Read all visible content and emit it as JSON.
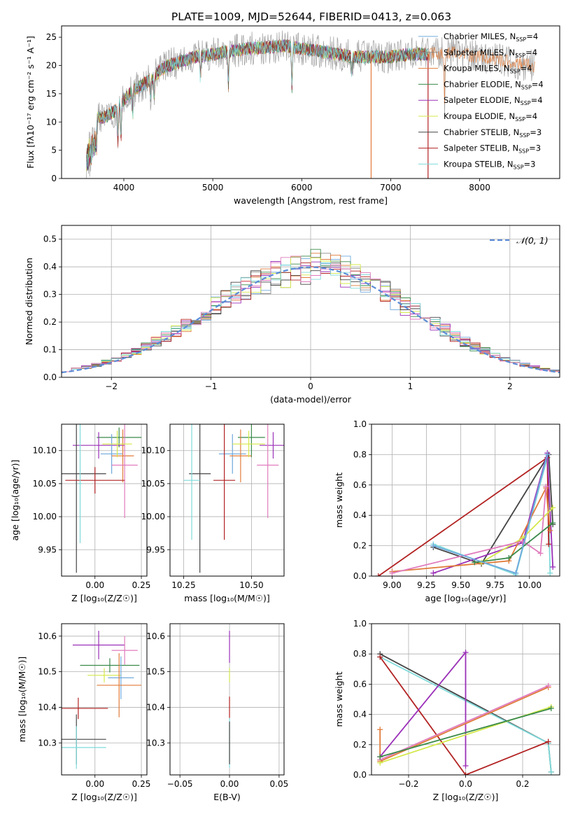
{
  "figure_title": "PLATE=1009, MJD=52644, FIBERID=0413, z=0.063",
  "colors": {
    "chabrier_miles": "#6fa8dc",
    "salpeter_miles": "#8e8e8e",
    "kroupa_miles": "#e07b39",
    "chabrier_elodie": "#3a8a4a",
    "salpeter_elodie": "#9b30b8",
    "kroupa_elodie": "#d4e84a",
    "chabrier_stelib": "#444444",
    "salpeter_stelib": "#b22222",
    "kroupa_stelib": "#7fdada",
    "pink": "#e07bbd",
    "normal_curve": "#5b8bd6"
  },
  "legend_spectrum": [
    {
      "pre": "Chabrier MILES, N",
      "sub": "SSP",
      "post": "=4",
      "color": "#6fa8dc"
    },
    {
      "pre": "Salpeter MILES, N",
      "sub": "SSP",
      "post": "=4",
      "color": "#8e8e8e"
    },
    {
      "pre": "Kroupa MILES, N",
      "sub": "SSP",
      "post": "=4",
      "color": "#e07b39"
    },
    {
      "pre": "Chabrier ELODIE, N",
      "sub": "SSP",
      "post": "=4",
      "color": "#3a8a4a"
    },
    {
      "pre": "Salpeter ELODIE, N",
      "sub": "SSP",
      "post": "=4",
      "color": "#9b30b8"
    },
    {
      "pre": "Kroupa ELODIE, N",
      "sub": "SSP",
      "post": "=4",
      "color": "#d4e84a"
    },
    {
      "pre": "Chabrier STELIB, N",
      "sub": "SSP",
      "post": "=3",
      "color": "#444444"
    },
    {
      "pre": "Salpeter STELIB, N",
      "sub": "SSP",
      "post": "=3",
      "color": "#b22222"
    },
    {
      "pre": "Kroupa STELIB, N",
      "sub": "SSP",
      "post": "=3",
      "color": "#7fdada"
    }
  ],
  "chart_data": [
    {
      "id": "spectrum",
      "type": "line",
      "xlabel": "wavelength [Angstrom, rest frame]",
      "ylabel": "Flux [fλ10⁻¹⁷ erg cm⁻² s⁻¹ A⁻¹]",
      "xlim": [
        3300,
        8900
      ],
      "ylim": [
        0,
        27
      ],
      "xticks": [
        4000,
        5000,
        6000,
        7000,
        8000
      ],
      "yticks": [
        0,
        5,
        10,
        15,
        20,
        25
      ],
      "continuum": {
        "x": [
          3600,
          3700,
          3800,
          3900,
          4000,
          4100,
          4200,
          4300,
          4400,
          4500,
          4600,
          4800,
          5000,
          5200,
          5400,
          5600,
          5800,
          6000,
          6200,
          6400,
          6600,
          6800,
          7000,
          7200,
          7400,
          7600,
          7800,
          8000,
          8200,
          8400,
          8600
        ],
        "y": [
          8,
          10.5,
          11,
          12,
          14,
          15.5,
          16.5,
          17.5,
          19,
          20,
          20.5,
          21.5,
          22,
          22.5,
          23,
          23.2,
          23.5,
          23,
          22.5,
          22,
          21.5,
          21.5,
          21.5,
          22,
          22,
          22.3,
          22,
          21.5,
          21,
          20.5,
          20
        ]
      },
      "series_names": [
        "Chabrier MILES",
        "Salpeter MILES",
        "Kroupa MILES",
        "Chabrier ELODIE",
        "Salpeter ELODIE",
        "Kroupa ELODIE",
        "Chabrier STELIB",
        "Salpeter STELIB",
        "Kroupa STELIB"
      ]
    },
    {
      "id": "residuals",
      "type": "histogram",
      "xlabel": "(data-model)/error",
      "ylabel": "Normed distribution",
      "xlim": [
        -2.5,
        2.5
      ],
      "ylim": [
        0,
        0.55
      ],
      "xticks": [
        -2,
        -1,
        0,
        1,
        2
      ],
      "yticks": [
        0.0,
        0.1,
        0.2,
        0.3,
        0.4,
        0.5
      ],
      "legend": "𝒩(0, 1)",
      "bin_width": 0.1
    },
    {
      "id": "age_vs_Z",
      "type": "errorbar",
      "xlabel": "Z [log₁₀(Z/Z☉)]",
      "ylabel": "age  [log₁₀(age/yr)]",
      "xlim": [
        -0.18,
        0.28
      ],
      "ylim": [
        9.91,
        10.14
      ],
      "xticks": [
        0.0,
        0.25
      ],
      "yticks": [
        9.95,
        10.0,
        10.05,
        10.1
      ],
      "points": [
        {
          "x": 0.13,
          "y": 10.12,
          "xerr": 0.12,
          "yerr": 0.015,
          "color": "#3a8a4a"
        },
        {
          "x": 0.02,
          "y": 10.108,
          "xerr": 0.14,
          "yerr": 0.02,
          "color": "#9b30b8"
        },
        {
          "x": 0.09,
          "y": 10.095,
          "xerr": 0.06,
          "yerr": 0.03,
          "color": "#6fa8dc"
        },
        {
          "x": 0.15,
          "y": 10.092,
          "xerr": 0.06,
          "yerr": 0.04,
          "color": "#e07b39"
        },
        {
          "x": 0.16,
          "y": 10.078,
          "xerr": 0.07,
          "yerr": 0.08,
          "color": "#e07bbd"
        },
        {
          "x": -0.1,
          "y": 10.065,
          "xerr": 0.16,
          "yerr": 0.15,
          "color": "#444444"
        },
        {
          "x": 0.0,
          "y": 10.055,
          "xerr": 0.16,
          "yerr": 0.02,
          "color": "#b22222"
        },
        {
          "x": -0.08,
          "y": 10.05,
          "xerr": 0.01,
          "yerr": 0.09,
          "color": "#7fdada"
        },
        {
          "x": 0.12,
          "y": 10.11,
          "xerr": 0.08,
          "yerr": 0.02,
          "color": "#d4e84a"
        }
      ]
    },
    {
      "id": "age_vs_mass",
      "type": "errorbar",
      "xlabel": "mass [log₁₀(M/M☉)]",
      "ylabel": "",
      "xlim": [
        10.2,
        10.62
      ],
      "ylim": [
        9.91,
        10.14
      ],
      "xticks": [
        10.25,
        10.5
      ],
      "yticks": [
        9.95,
        10.0,
        10.05,
        10.1
      ],
      "points": [
        {
          "x": 10.5,
          "y": 10.12,
          "xerr": 0.05,
          "yerr": 0.03,
          "color": "#3a8a4a"
        },
        {
          "x": 10.58,
          "y": 10.108,
          "xerr": 0.05,
          "yerr": 0.02,
          "color": "#9b30b8"
        },
        {
          "x": 10.43,
          "y": 10.095,
          "xerr": 0.05,
          "yerr": 0.03,
          "color": "#6fa8dc"
        },
        {
          "x": 10.46,
          "y": 10.092,
          "xerr": 0.04,
          "yerr": 0.04,
          "color": "#e07b39"
        },
        {
          "x": 10.56,
          "y": 10.078,
          "xerr": 0.04,
          "yerr": 0.08,
          "color": "#e07bbd"
        },
        {
          "x": 10.31,
          "y": 10.065,
          "xerr": 0.04,
          "yerr": 0.15,
          "color": "#444444"
        },
        {
          "x": 10.4,
          "y": 10.055,
          "xerr": 0.04,
          "yerr": 0.09,
          "color": "#b22222"
        },
        {
          "x": 10.28,
          "y": 10.055,
          "xerr": 0.03,
          "yerr": 0.09,
          "color": "#7fdada"
        },
        {
          "x": 10.49,
          "y": 10.11,
          "xerr": 0.06,
          "yerr": 0.02,
          "color": "#d4e84a"
        }
      ]
    },
    {
      "id": "weight_vs_age",
      "type": "line",
      "xlabel": "age  [log₁₀(age/yr)]",
      "ylabel": "mass weight",
      "xlim": [
        8.85,
        10.22
      ],
      "ylim": [
        0,
        1.0
      ],
      "xticks": [
        9.0,
        9.25,
        9.5,
        9.75,
        10.0
      ],
      "yticks": [
        0.0,
        0.2,
        0.4,
        0.6,
        0.8,
        1.0
      ],
      "series": [
        {
          "color": "#7fdada",
          "x": [
            9.3,
            9.9,
            10.13,
            10.15
          ],
          "y": [
            0.21,
            0.01,
            0.78,
            0.02
          ]
        },
        {
          "color": "#444444",
          "x": [
            9.3,
            9.65,
            10.14,
            10.17
          ],
          "y": [
            0.19,
            0.08,
            0.8,
            0.34
          ]
        },
        {
          "color": "#b22222",
          "x": [
            8.9,
            10.13,
            10.14
          ],
          "y": [
            0.0,
            0.78,
            0.21
          ]
        },
        {
          "color": "#9b30b8",
          "x": [
            9.3,
            9.95,
            10.13,
            10.17
          ],
          "y": [
            0.02,
            0.22,
            0.81,
            0.06
          ]
        },
        {
          "color": "#e07b39",
          "x": [
            9.0,
            9.85,
            10.12,
            10.15
          ],
          "y": [
            0.03,
            0.1,
            0.58,
            0.3
          ]
        },
        {
          "color": "#d4e84a",
          "x": [
            9.65,
            9.95,
            10.17
          ],
          "y": [
            0.09,
            0.25,
            0.45
          ]
        },
        {
          "color": "#e07bbd",
          "x": [
            9.0,
            9.95,
            10.08,
            10.12
          ],
          "y": [
            0.02,
            0.23,
            0.15,
            0.59
          ]
        },
        {
          "color": "#3a8a4a",
          "x": [
            9.6,
            9.85,
            10.17
          ],
          "y": [
            0.09,
            0.12,
            0.35
          ]
        },
        {
          "color": "#6fa8dc",
          "x": [
            9.3,
            9.9,
            10.13
          ],
          "y": [
            0.2,
            0.02,
            0.8
          ]
        }
      ]
    },
    {
      "id": "mass_vs_Z",
      "type": "errorbar",
      "xlabel": "Z [log₁₀(Z/Z☉)]",
      "ylabel": "mass [log₁₀(M/M☉)]",
      "xlim": [
        -0.18,
        0.28
      ],
      "ylim": [
        10.21,
        10.635
      ],
      "xticks": [
        0.0,
        0.25
      ],
      "yticks": [
        10.3,
        10.4,
        10.5,
        10.6
      ],
      "points": [
        {
          "x": 0.02,
          "y": 10.575,
          "xerr": 0.14,
          "yerr": 0.04,
          "color": "#9b30b8"
        },
        {
          "x": 0.16,
          "y": 10.56,
          "xerr": 0.07,
          "yerr": 0.04,
          "color": "#e07bbd"
        },
        {
          "x": 0.08,
          "y": 10.518,
          "xerr": 0.16,
          "yerr": 0.02,
          "color": "#3a8a4a"
        },
        {
          "x": 0.05,
          "y": 10.49,
          "xerr": 0.09,
          "yerr": 0.02,
          "color": "#d4e84a"
        },
        {
          "x": 0.14,
          "y": 10.483,
          "xerr": 0.07,
          "yerr": 0.06,
          "color": "#6fa8dc"
        },
        {
          "x": 0.13,
          "y": 10.462,
          "xerr": 0.12,
          "yerr": 0.09,
          "color": "#e07b39"
        },
        {
          "x": -0.09,
          "y": 10.397,
          "xerr": 0.16,
          "yerr": 0.03,
          "color": "#b22222"
        },
        {
          "x": -0.1,
          "y": 10.31,
          "xerr": 0.16,
          "yerr": 0.07,
          "color": "#444444"
        },
        {
          "x": -0.1,
          "y": 10.287,
          "xerr": 0.16,
          "yerr": 0.06,
          "color": "#7fdada"
        }
      ]
    },
    {
      "id": "mass_vs_EBV",
      "type": "errorbar",
      "xlabel": "E(B-V)",
      "ylabel": "",
      "xlim": [
        -0.06,
        0.055
      ],
      "ylim": [
        10.21,
        10.635
      ],
      "xticks": [
        -0.05,
        0.0,
        0.05
      ],
      "yticks": [
        10.3,
        10.4,
        10.5,
        10.6
      ],
      "points": [
        {
          "x": 0.0,
          "y": 10.57,
          "xerr": 0,
          "yerr": 0.045,
          "color": "#9b30b8"
        },
        {
          "x": 0.0,
          "y": 10.49,
          "xerr": 0,
          "yerr": 0.02,
          "color": "#d4e84a"
        },
        {
          "x": 0.0,
          "y": 10.4,
          "xerr": 0,
          "yerr": 0.03,
          "color": "#b22222"
        },
        {
          "x": 0.0,
          "y": 10.3,
          "xerr": 0,
          "yerr": 0.07,
          "color": "#7fdada"
        },
        {
          "x": 0.0,
          "y": 10.3,
          "xerr": 0,
          "yerr": 0.06,
          "color": "#444444"
        }
      ]
    },
    {
      "id": "weight_vs_Z",
      "type": "line",
      "xlabel": "Z [log₁₀(Z/Z☉)]",
      "ylabel": "mass weight",
      "xlim": [
        -0.33,
        0.33
      ],
      "ylim": [
        0,
        1.0
      ],
      "xticks": [
        -0.2,
        0.0,
        0.2
      ],
      "yticks": [
        0.0,
        0.2,
        0.4,
        0.6,
        0.8,
        1.0
      ],
      "series": [
        {
          "color": "#444444",
          "x": [
            -0.3,
            0.29,
            0.3
          ],
          "y": [
            0.8,
            0.21,
            0.02
          ]
        },
        {
          "color": "#7fdada",
          "x": [
            -0.3,
            0.29,
            0.3
          ],
          "y": [
            0.78,
            0.21,
            0.02
          ]
        },
        {
          "color": "#b22222",
          "x": [
            -0.3,
            0.0,
            0.29
          ],
          "y": [
            0.78,
            0.0,
            0.22
          ]
        },
        {
          "color": "#9b30b8",
          "x": [
            -0.3,
            0.0,
            0.0
          ],
          "y": [
            0.12,
            0.81,
            0.06
          ]
        },
        {
          "color": "#e07b39",
          "x": [
            -0.3,
            -0.3,
            0.29
          ],
          "y": [
            0.3,
            0.09,
            0.58
          ]
        },
        {
          "color": "#e07bbd",
          "x": [
            -0.3,
            0.29
          ],
          "y": [
            0.1,
            0.59
          ]
        },
        {
          "color": "#d4e84a",
          "x": [
            -0.3,
            0.3
          ],
          "y": [
            0.08,
            0.45
          ]
        },
        {
          "color": "#3a8a4a",
          "x": [
            -0.3,
            0.3
          ],
          "y": [
            0.12,
            0.44
          ]
        }
      ]
    }
  ]
}
